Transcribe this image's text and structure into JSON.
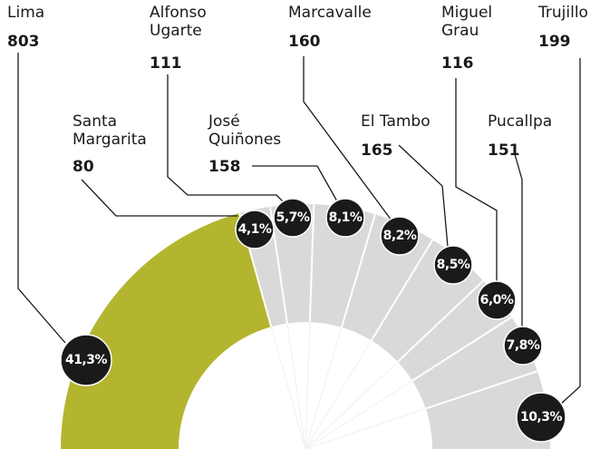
{
  "chart_data": {
    "type": "half-donut",
    "categories": [
      "Lima",
      "Santa Margarita",
      "Alfonso Ugarte",
      "José Quiñones",
      "Marcavalle",
      "El Tambo",
      "Miguel Grau",
      "Pucallpa",
      "Trujillo"
    ],
    "values": [
      41.3,
      4.1,
      5.7,
      8.1,
      8.2,
      8.5,
      6.0,
      7.8,
      10.3
    ],
    "value_labels": [
      "41,3%",
      "4,1%",
      "5,7%",
      "8,1%",
      "8,2%",
      "8,5%",
      "6,0%",
      "7,8%",
      "10,3%"
    ],
    "counts": [
      803,
      80,
      111,
      158,
      160,
      165,
      116,
      151,
      199
    ],
    "colors": [
      "#b4b52f",
      "#d9d9d9",
      "#d9d9d9",
      "#d9d9d9",
      "#d9d9d9",
      "#d9d9d9",
      "#d9d9d9",
      "#d9d9d9",
      "#d9d9d9"
    ]
  }
}
